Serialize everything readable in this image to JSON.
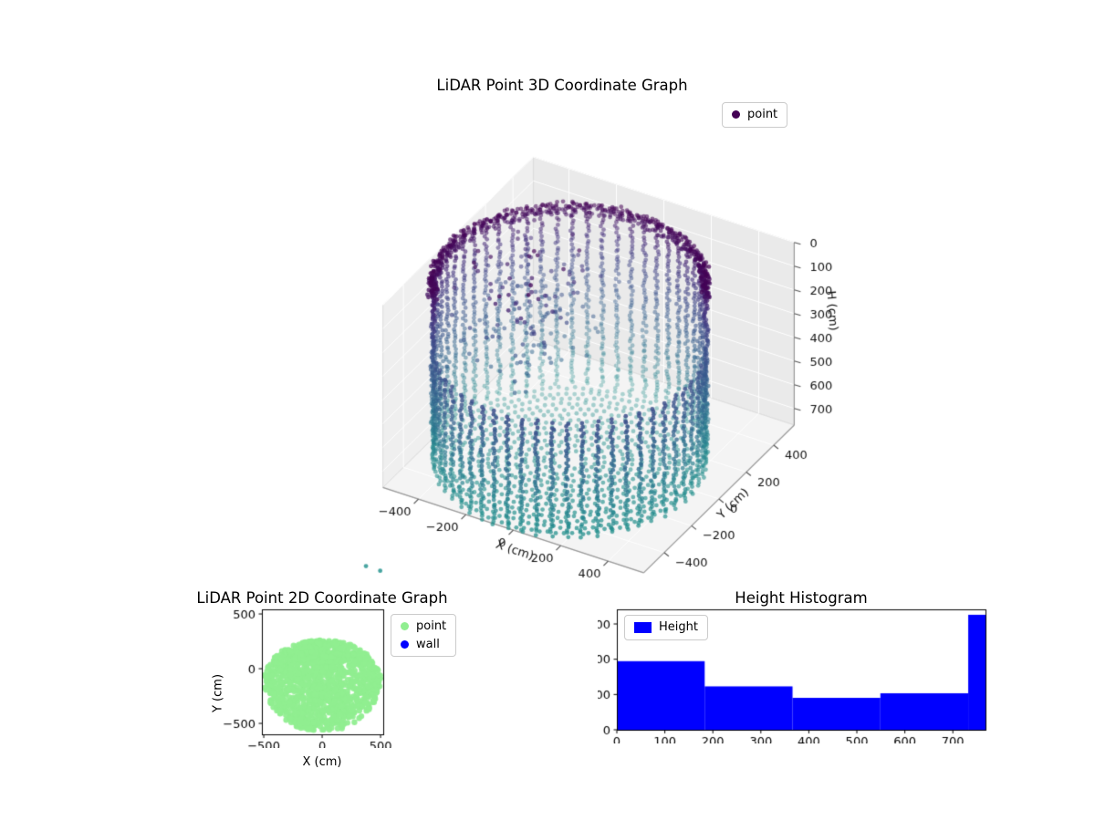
{
  "figure": {
    "background": "#ffffff"
  },
  "chart_data": [
    {
      "id": "lidar_3d",
      "type": "scatter3d",
      "title": "LiDAR Point 3D Coordinate Graph",
      "xlabel": "X (cm)",
      "ylabel": "Y (cm)",
      "zlabel": "H (cm)",
      "xlim": [
        -550,
        550
      ],
      "ylim": [
        -550,
        550
      ],
      "zlim": [
        0,
        770
      ],
      "z_axis_inverted": true,
      "xticks": [
        -400,
        -200,
        0,
        200,
        400
      ],
      "yticks": [
        -400,
        -200,
        0,
        200,
        400
      ],
      "zticks": [
        0,
        100,
        200,
        300,
        400,
        500,
        600,
        700
      ],
      "legend": {
        "items": [
          {
            "label": "point",
            "marker_color": "#440154"
          }
        ]
      },
      "colormap_stops": [
        "#440154",
        "#46327e",
        "#3e4c8a",
        "#365c8d",
        "#2e6d8e",
        "#26818e",
        "#21918c"
      ],
      "point_cloud": {
        "description": "Cylindrical LiDAR room scan: wall ring radius ~500 cm around center, heights 0-770 cm (H inverted, 0 at top); dense dark rim at H~0; front wall only below ~280 cm so interior and floor rings are visible; scattered noise cluster upper-left; two stray points outside lower-left. Color = viridis(H): dark purple at H=0 to teal at floor.",
        "center": [
          -40,
          -70
        ],
        "wall_radius": 500,
        "wall_angle_count": 56,
        "wall_h_step": 14,
        "front_wall_min_h": 280,
        "front_threshold": 100,
        "rim_h_values": [
          0,
          10,
          20,
          30,
          42
        ],
        "rim_angle_count": 170,
        "floor_ring_start": 60,
        "floor_ring_end": 470,
        "floor_ring_step": 34,
        "floor_point_spacing": 30,
        "noise_count": 150,
        "noise_x_range": [
          -480,
          -90
        ],
        "noise_y_range": [
          -250,
          290
        ],
        "noise_h_range": [
          0,
          470
        ],
        "outliers": [
          [
            -350,
            -1020,
            770
          ],
          [
            -290,
            -1020,
            770
          ]
        ],
        "marker_diameter_px": 4.8
      }
    },
    {
      "id": "lidar_2d",
      "type": "scatter",
      "title": "LiDAR Point 2D Coordinate Graph",
      "xlabel": "X (cm)",
      "ylabel": "Y (cm)",
      "xlim": [
        -516,
        523
      ],
      "ylim": [
        -600,
        542
      ],
      "xticks": [
        -500,
        0,
        500
      ],
      "yticks": [
        -500,
        0,
        500
      ],
      "legend": {
        "items": [
          {
            "label": "point",
            "marker_color": "#90ee90"
          },
          {
            "label": "wall",
            "marker_color": "#0000ff"
          }
        ]
      },
      "series": [
        {
          "name": "point",
          "color": "#90ee90",
          "shape": {
            "type": "filled-blob",
            "center": [
              0,
              -80
            ],
            "radius": 500,
            "top_flatten": 0.32,
            "point_count": 1300
          },
          "extent_note": "solid light-green disc of points, x -500..500, y -580..260, flattened on top"
        },
        {
          "name": "wall",
          "color": "#0000ff",
          "visible_points": 0
        }
      ]
    },
    {
      "id": "height_hist",
      "type": "bar",
      "title": "Height Histogram",
      "legend": {
        "items": [
          {
            "label": "Height",
            "marker_color": "#0000ff"
          }
        ]
      },
      "bar_color": "#0000ff",
      "bin_edges": [
        0,
        183,
        366,
        549,
        732,
        915
      ],
      "counts": [
        1945,
        1230,
        905,
        1035,
        3260
      ],
      "xlim": [
        0,
        768
      ],
      "ylim": [
        0,
        3414
      ],
      "xticks": [
        0,
        100,
        200,
        300,
        400,
        500,
        600,
        700
      ],
      "yticks": [
        0,
        1000,
        2000,
        3000
      ]
    }
  ]
}
